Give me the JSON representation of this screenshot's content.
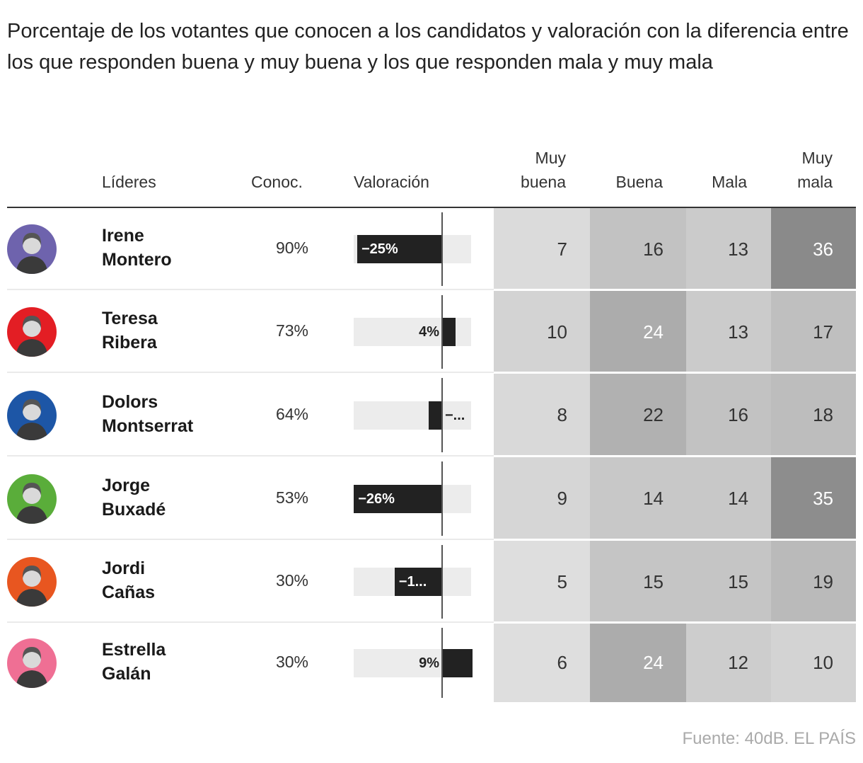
{
  "title": "Porcentaje de los votantes que conocen a los candidatos y valoración con la diferencia entre los que responden buena y muy buena y los que responden mala y muy mala",
  "headers": {
    "lideres": "Líderes",
    "conoc": "Conoc.",
    "valoracion": "Valoración",
    "muy_buena": [
      "Muy",
      "buena"
    ],
    "buena": "Buena",
    "mala": "Mala",
    "muy_mala": [
      "Muy",
      "mala"
    ]
  },
  "source": "Fuente: 40dB. EL PAÍS",
  "chart_data": {
    "type": "table",
    "title": "Porcentaje de los votantes que conocen a los candidatos y valoración",
    "columns": [
      "Líderes",
      "Conoc.",
      "Valoración",
      "Muy buena",
      "Buena",
      "Mala",
      "Muy mala"
    ],
    "valoracion_range": [
      -26,
      9
    ],
    "rows": [
      {
        "first": "Irene",
        "last": "Montero",
        "color": "#6e63ad",
        "conoc": "90%",
        "val": -25,
        "val_label": "−25%",
        "muy_buena": 7,
        "buena": 16,
        "mala": 13,
        "muy_mala": 36
      },
      {
        "first": "Teresa",
        "last": "Ribera",
        "color": "#e31e24",
        "conoc": "73%",
        "val": 4,
        "val_label": "4%",
        "muy_buena": 10,
        "buena": 24,
        "mala": 13,
        "muy_mala": 17
      },
      {
        "first": "Dolors",
        "last": "Montserrat",
        "color": "#1d56a6",
        "conoc": "64%",
        "val": -4,
        "val_label": "−...",
        "muy_buena": 8,
        "buena": 22,
        "mala": 16,
        "muy_mala": 18
      },
      {
        "first": "Jorge",
        "last": "Buxadé",
        "color": "#5aad3a",
        "conoc": "53%",
        "val": -26,
        "val_label": "−26%",
        "muy_buena": 9,
        "buena": 14,
        "mala": 14,
        "muy_mala": 35
      },
      {
        "first": "Jordi",
        "last": "Cañas",
        "color": "#e85620",
        "conoc": "30%",
        "val": -14,
        "val_label": "−1...",
        "muy_buena": 5,
        "buena": 15,
        "mala": 15,
        "muy_mala": 19
      },
      {
        "first": "Estrella",
        "last": "Galán",
        "color": "#ef6f94",
        "conoc": "30%",
        "val": 9,
        "val_label": "9%",
        "muy_buena": 6,
        "buena": 24,
        "mala": 12,
        "muy_mala": 10
      }
    ]
  }
}
